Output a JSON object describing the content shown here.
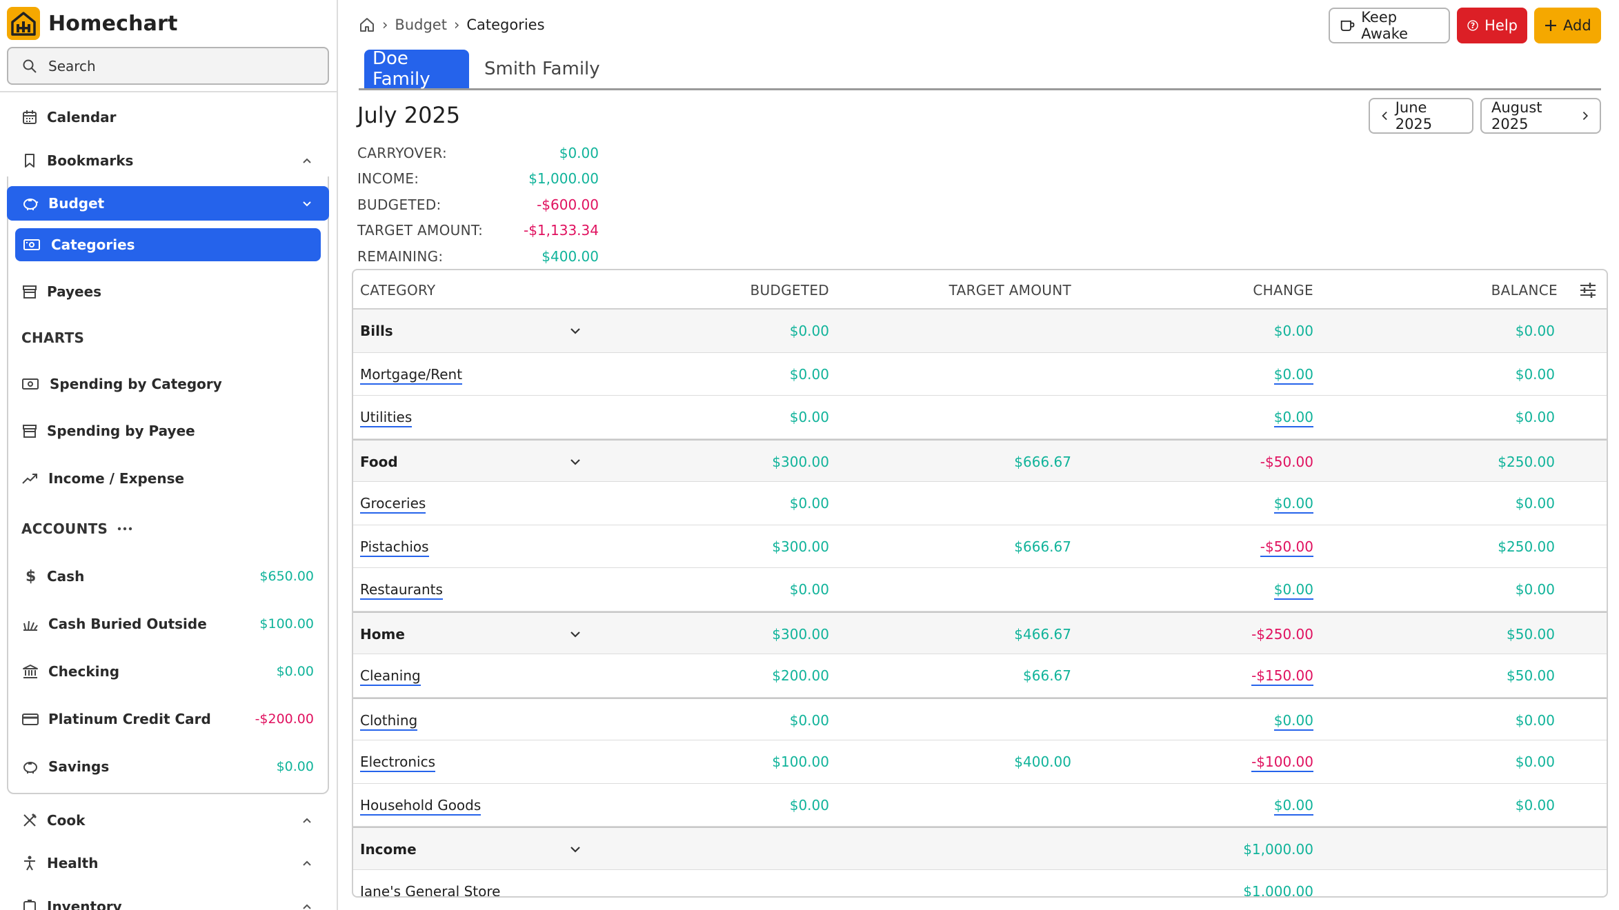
{
  "app": {
    "name": "Homechart"
  },
  "search": {
    "label": "Search"
  },
  "nav": {
    "calendar": "Calendar",
    "bookmarks": "Bookmarks",
    "budget": "Budget",
    "categories": "Categories",
    "payees": "Payees",
    "charts_heading": "CHARTS",
    "spending_by_category": "Spending by Category",
    "spending_by_payee": "Spending by Payee",
    "income_expense": "Income / Expense",
    "accounts_heading": "ACCOUNTS",
    "cook": "Cook",
    "health": "Health",
    "inventory": "Inventory"
  },
  "accounts": [
    {
      "name": "Cash",
      "amount": "$650.00",
      "sign": "pos"
    },
    {
      "name": "Cash Buried Outside",
      "amount": "$100.00",
      "sign": "pos"
    },
    {
      "name": "Checking",
      "amount": "$0.00",
      "sign": "pos"
    },
    {
      "name": "Platinum Credit Card",
      "amount": "-$200.00",
      "sign": "neg"
    },
    {
      "name": "Savings",
      "amount": "$0.00",
      "sign": "pos"
    }
  ],
  "breadcrumb": {
    "parent": "Budget",
    "current": "Categories"
  },
  "header_buttons": {
    "keep_awake": "Keep Awake",
    "help": "Help",
    "add": "Add"
  },
  "tabs": {
    "active": "Doe Family",
    "inactive": "Smith Family"
  },
  "month": {
    "title": "July 2025",
    "prev": "June 2025",
    "next": "August 2025"
  },
  "summary": {
    "carryover_label": "CARRYOVER:",
    "carryover": "$0.00",
    "income_label": "INCOME:",
    "income": "$1,000.00",
    "budgeted_label": "BUDGETED:",
    "budgeted": "-$600.00",
    "target_label": "TARGET AMOUNT:",
    "target": "-$1,133.34",
    "remaining_label": "REMAINING:",
    "remaining": "$400.00"
  },
  "table": {
    "headers": {
      "category": "CATEGORY",
      "budgeted": "BUDGETED",
      "target": "TARGET AMOUNT",
      "change": "CHANGE",
      "balance": "BALANCE"
    },
    "rows": [
      {
        "name": "Bills",
        "group": true,
        "budgeted": "$0.00",
        "target": "",
        "change": "$0.00",
        "balance": "$0.00"
      },
      {
        "name": "Mortgage/Rent",
        "group": false,
        "budgeted": "$0.00",
        "target": "",
        "change": "$0.00",
        "balance": "$0.00"
      },
      {
        "name": "Utilities",
        "group": false,
        "budgeted": "$0.00",
        "target": "",
        "change": "$0.00",
        "balance": "$0.00"
      },
      {
        "name": "Food",
        "group": true,
        "budgeted": "$300.00",
        "target": "$666.67",
        "change": "-$50.00",
        "balance": "$250.00"
      },
      {
        "name": "Groceries",
        "group": false,
        "budgeted": "$0.00",
        "target": "",
        "change": "$0.00",
        "balance": "$0.00"
      },
      {
        "name": "Pistachios",
        "group": false,
        "budgeted": "$300.00",
        "target": "$666.67",
        "change": "-$50.00",
        "balance": "$250.00"
      },
      {
        "name": "Restaurants",
        "group": false,
        "budgeted": "$0.00",
        "target": "",
        "change": "$0.00",
        "balance": "$0.00"
      },
      {
        "name": "Home",
        "group": true,
        "budgeted": "$300.00",
        "target": "$466.67",
        "change": "-$250.00",
        "balance": "$50.00"
      },
      {
        "name": "Cleaning",
        "group": false,
        "budgeted": "$200.00",
        "target": "$66.67",
        "change": "-$150.00",
        "balance": "$50.00"
      },
      {
        "name": "Clothing",
        "group": false,
        "budgeted": "$0.00",
        "target": "",
        "change": "$0.00",
        "balance": "$0.00"
      },
      {
        "name": "Electronics",
        "group": false,
        "budgeted": "$100.00",
        "target": "$400.00",
        "change": "-$100.00",
        "balance": "$0.00"
      },
      {
        "name": "Household Goods",
        "group": false,
        "budgeted": "$0.00",
        "target": "",
        "change": "$0.00",
        "balance": "$0.00"
      },
      {
        "name": "Income",
        "group": true,
        "budgeted": "",
        "target": "",
        "change": "$1,000.00",
        "balance": ""
      },
      {
        "name": "Jane's General Store",
        "group": false,
        "plain": true,
        "budgeted": "",
        "target": "",
        "change": "$1,000.00",
        "balance": ""
      }
    ]
  },
  "colors": {
    "accent": "#2563eb",
    "positive": "#10b39a",
    "negative": "#e0115f",
    "brand": "#f5a800",
    "help": "#dc1f26"
  }
}
